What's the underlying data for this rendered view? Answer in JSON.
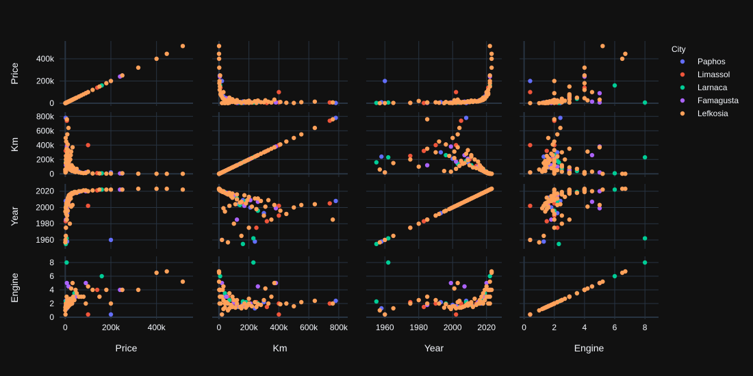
{
  "chart_data": {
    "type": "scatter",
    "subtype": "scatter-matrix",
    "dimensions": [
      "Price",
      "Km",
      "Year",
      "Engine"
    ],
    "axes": {
      "Price": {
        "range": [
          -25000,
          560000
        ],
        "ticks": [
          0,
          200000,
          400000
        ],
        "tick_labels": [
          "0",
          "200k",
          "400k"
        ]
      },
      "Km": {
        "range": [
          -45000,
          860000
        ],
        "ticks": [
          0,
          200000,
          400000,
          600000,
          800000
        ],
        "tick_labels": [
          "0",
          "200k",
          "400k",
          "600k",
          "800k"
        ]
      },
      "Year": {
        "range": [
          1949,
          2029
        ],
        "ticks": [
          1960,
          1980,
          2000,
          2020
        ],
        "tick_labels": [
          "1960",
          "1980",
          "2000",
          "2020"
        ]
      },
      "Engine": {
        "range": [
          -0.3,
          8.9
        ],
        "ticks": [
          0,
          2,
          4,
          6,
          8
        ],
        "tick_labels": [
          "0",
          "2",
          "4",
          "6",
          "8"
        ]
      }
    },
    "grid": true,
    "legend": {
      "title": "City",
      "placement": "right",
      "entries": [
        {
          "name": "Paphos",
          "color": "#636efa"
        },
        {
          "name": "Limassol",
          "color": "#EF553B"
        },
        {
          "name": "Larnaca",
          "color": "#00cc96"
        },
        {
          "name": "Famagusta",
          "color": "#ab63fa"
        },
        {
          "name": "Lefkosia",
          "color": "#FFA15A"
        }
      ]
    },
    "series": [
      {
        "name": "Lefkosia",
        "points": [
          [
            500,
            40000,
            1995,
            1.4
          ],
          [
            2000,
            500000,
            2000,
            1.6
          ],
          [
            3500,
            250000,
            1998,
            1.5
          ],
          [
            5000,
            180000,
            2005,
            1.4
          ],
          [
            7000,
            150000,
            2007,
            1.6
          ],
          [
            10000,
            120000,
            2010,
            2.0
          ],
          [
            12000,
            90000,
            2012,
            1.5
          ],
          [
            15000,
            80000,
            2014,
            1.8
          ],
          [
            20000,
            60000,
            2016,
            2.0
          ],
          [
            25000,
            50000,
            2017,
            2.2
          ],
          [
            30000,
            40000,
            2018,
            2.0
          ],
          [
            40000,
            30000,
            2019,
            2.5
          ],
          [
            60000,
            20000,
            2020,
            3.0
          ],
          [
            80000,
            10000,
            2021,
            3.0
          ],
          [
            120000,
            5000,
            2021,
            4.0
          ],
          [
            180000,
            3000,
            2022,
            4.0
          ],
          [
            250000,
            8000,
            2022,
            4.0
          ],
          [
            320000,
            2000,
            2023,
            4.0
          ],
          [
            400000,
            1000,
            2023,
            6.5
          ],
          [
            445000,
            500,
            2023,
            6.7
          ],
          [
            515000,
            800,
            2022,
            5.2
          ],
          [
            8000,
            300000,
            1990,
            2.5
          ],
          [
            6000,
            350000,
            1985,
            3.0
          ],
          [
            4000,
            450000,
            1992,
            2.0
          ],
          [
            9000,
            550000,
            2003,
            2.2
          ],
          [
            14000,
            640000,
            2004,
            2.4
          ],
          [
            7000,
            760000,
            1985,
            2.0
          ],
          [
            11000,
            410000,
            1996,
            1.9
          ],
          [
            3000,
            200000,
            1975,
            2.0
          ],
          [
            2500,
            150000,
            1965,
            1.3
          ],
          [
            20000,
            100000,
            1980,
            2.5
          ],
          [
            5500,
            220000,
            2001,
            1.6
          ],
          [
            9000,
            280000,
            2008,
            1.8
          ],
          [
            13000,
            330000,
            2009,
            2.0
          ],
          [
            18000,
            240000,
            2011,
            2.2
          ],
          [
            22000,
            200000,
            2013,
            2.7
          ],
          [
            16000,
            170000,
            2015,
            2.0
          ],
          [
            28000,
            120000,
            2016,
            2.5
          ],
          [
            35000,
            90000,
            2017,
            3.0
          ],
          [
            50000,
            70000,
            2018,
            3.5
          ],
          [
            3000,
            30000,
            1999,
            1.2
          ],
          [
            4500,
            70000,
            2002,
            1.3
          ],
          [
            6500,
            110000,
            2004,
            1.4
          ],
          [
            11000,
            140000,
            2006,
            1.5
          ],
          [
            17000,
            190000,
            2009,
            1.7
          ],
          [
            24000,
            260000,
            2011,
            1.9
          ],
          [
            300,
            60000,
            1957,
            1.0
          ],
          [
            1000,
            20000,
            1960,
            0.4
          ],
          [
            45000,
            25000,
            2019,
            4.0
          ],
          [
            70000,
            15000,
            2020,
            3.0
          ],
          [
            90000,
            12000,
            2021,
            2.0
          ],
          [
            150000,
            6000,
            2022,
            3.0
          ],
          [
            200000,
            4000,
            2022,
            2.0
          ],
          [
            100000,
            30000,
            2020,
            4.5
          ],
          [
            26000,
            310000,
            2001,
            4.2
          ],
          [
            32000,
            370000,
            2003,
            5.0
          ]
        ]
      },
      {
        "name": "Paphos",
        "points": [
          [
            4000,
            130000,
            2004,
            1.5
          ],
          [
            12000,
            90000,
            2012,
            1.6
          ],
          [
            30000,
            50000,
            2017,
            2.0
          ],
          [
            6000,
            210000,
            2000,
            1.8
          ],
          [
            200000,
            20000,
            1960,
            0.4
          ],
          [
            60000,
            30000,
            2019,
            3.0
          ],
          [
            2000,
            780000,
            2008,
            2.4
          ],
          [
            9000,
            300000,
            1993,
            2.2
          ],
          [
            15000,
            160000,
            2009,
            2.0
          ],
          [
            250000,
            5000,
            2022,
            4.0
          ],
          [
            8000,
            240000,
            1958,
            1.3
          ]
        ]
      },
      {
        "name": "Limassol",
        "points": [
          [
            5000,
            160000,
            2005,
            1.6
          ],
          [
            8000,
            400000,
            1990,
            2.0
          ],
          [
            18000,
            110000,
            2014,
            2.0
          ],
          [
            35000,
            60000,
            2018,
            3.0
          ],
          [
            100000,
            400000,
            2002,
            0.4
          ],
          [
            3000,
            250000,
            1975,
            2.2
          ],
          [
            11000,
            200000,
            2010,
            1.8
          ],
          [
            25000,
            90000,
            2016,
            2.5
          ],
          [
            140000,
            10000,
            2021,
            4.0
          ],
          [
            7000,
            740000,
            2005,
            2.0
          ],
          [
            2000,
            320000,
            1983,
            1.5
          ]
        ]
      },
      {
        "name": "Larnaca",
        "points": [
          [
            4500,
            140000,
            2003,
            1.5
          ],
          [
            9000,
            260000,
            1996,
            2.0
          ],
          [
            15000,
            120000,
            2011,
            1.8
          ],
          [
            28000,
            70000,
            2017,
            2.5
          ],
          [
            2500,
            160000,
            1955,
            2.3
          ],
          [
            6000,
            230000,
            1962,
            8.0
          ],
          [
            12000,
            180000,
            2008,
            2.2
          ],
          [
            40000,
            40000,
            2019,
            3.5
          ],
          [
            160000,
            8000,
            2022,
            6.0
          ]
        ]
      },
      {
        "name": "Famagusta",
        "points": [
          [
            5000,
            170000,
            2002,
            1.6
          ],
          [
            10000,
            210000,
            2009,
            2.0
          ],
          [
            20000,
            100000,
            2015,
            2.2
          ],
          [
            45000,
            50000,
            2018,
            3.0
          ],
          [
            7000,
            380000,
            1999,
            5.0
          ],
          [
            3000,
            120000,
            1985,
            1.8
          ],
          [
            14000,
            260000,
            2007,
            4.5
          ],
          [
            90000,
            20000,
            2020,
            5.0
          ],
          [
            240000,
            6000,
            2022,
            4.0
          ]
        ]
      }
    ]
  }
}
